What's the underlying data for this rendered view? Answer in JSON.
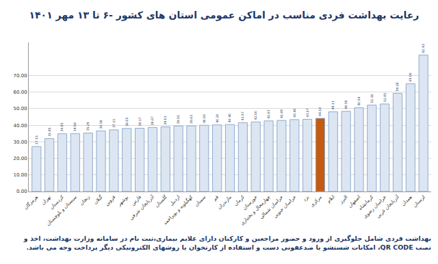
{
  "chart_data": {
    "type": "bar",
    "title": "رعایت بهداشت فردی مناسب در اماکن عمومی استان های کشور -۶ تا ۱۳ مهر ۱۴۰۱",
    "categories": [
      "هرمزگان",
      "تهران",
      "کردستان",
      "سیستان و بلوچستان",
      "زنجان",
      "گیلان",
      "قزوین",
      "بوشهر",
      "فارس",
      "آذربایجان شرقی",
      "گلستان",
      "اردبیل",
      "کهگیلویه و بویراحمد",
      "سمنان",
      "قم",
      "مازندران",
      "کرمان",
      "خوزستان",
      "چهارمحال و بختیاری",
      "خراسان شمالی",
      "خراسان جنوبی",
      "یزد",
      "مرکزی",
      "ایلام",
      "البرز",
      "اصفهان",
      "کرمانشاه",
      "خراسان رضوی",
      "آذربایجان غربی",
      "همدان",
      "لرستان"
    ],
    "values": [
      27.15,
      31.95,
      34.85,
      34.98,
      35.29,
      36.58,
      37.21,
      38.05,
      38.17,
      38.67,
      39.01,
      39.55,
      39.63,
      40.0,
      40.2,
      40.4,
      41.57,
      42.0,
      42.63,
      42.89,
      43.4,
      43.57,
      44.18,
      48.11,
      48.38,
      50.54,
      52.16,
      52.85,
      59.28,
      65.06,
      82.43
    ],
    "value_labels": [
      "27.15",
      "31.95",
      "34.85",
      "34.98",
      "35.29",
      "36.58",
      "37.21",
      "38.05",
      "38.17",
      "38.67",
      "39.01",
      "39.55",
      "39.63",
      "40.00",
      "40.20",
      "40.40",
      "41.57",
      "42.00",
      "42.63",
      "42.89",
      "43.40",
      "43.57",
      "44.18",
      "48.11",
      "48.38",
      "50.54",
      "52.16",
      "52.85",
      "59.28",
      "65.06",
      "82.43"
    ],
    "colors": [
      "#dce6f2",
      "#dce6f2",
      "#dce6f2",
      "#dce6f2",
      "#dce6f2",
      "#dce6f2",
      "#dce6f2",
      "#dce6f2",
      "#dce6f2",
      "#dce6f2",
      "#dce6f2",
      "#dce6f2",
      "#dce6f2",
      "#dce6f2",
      "#dce6f2",
      "#dce6f2",
      "#dce6f2",
      "#dce6f2",
      "#dce6f2",
      "#dce6f2",
      "#dce6f2",
      "#dce6f2",
      "#c55a11",
      "#dce6f2",
      "#dce6f2",
      "#dce6f2",
      "#dce6f2",
      "#dce6f2",
      "#dce6f2",
      "#dce6f2",
      "#dce6f2"
    ],
    "ylim": [
      0,
      90
    ],
    "yticks": [
      {
        "value": 0,
        "label": "0.00"
      },
      {
        "value": 10,
        "label": "10.00"
      },
      {
        "value": 20,
        "label": "20.00"
      },
      {
        "value": 30,
        "label": "30.00"
      },
      {
        "value": 40,
        "label": "40.00"
      },
      {
        "value": 50,
        "label": "50.00"
      },
      {
        "value": 60,
        "label": "60.00"
      },
      {
        "value": 70,
        "label": "70.00"
      }
    ],
    "grid": true,
    "data_labels": true,
    "note": "بهداشت فردی شامل جلوگیری از ورود و حضور مراجعین و کارکنان دارای علایم بیماری،ثبت نام در سامانه وزارت بهداشت، اخذ و نصب QR CODE، امکانات شستشو یا ضدعفونی دست و استفاده از کارتخوان یا روشهای الکترونیکی دیگر پرداخت وجه می باشد."
  }
}
